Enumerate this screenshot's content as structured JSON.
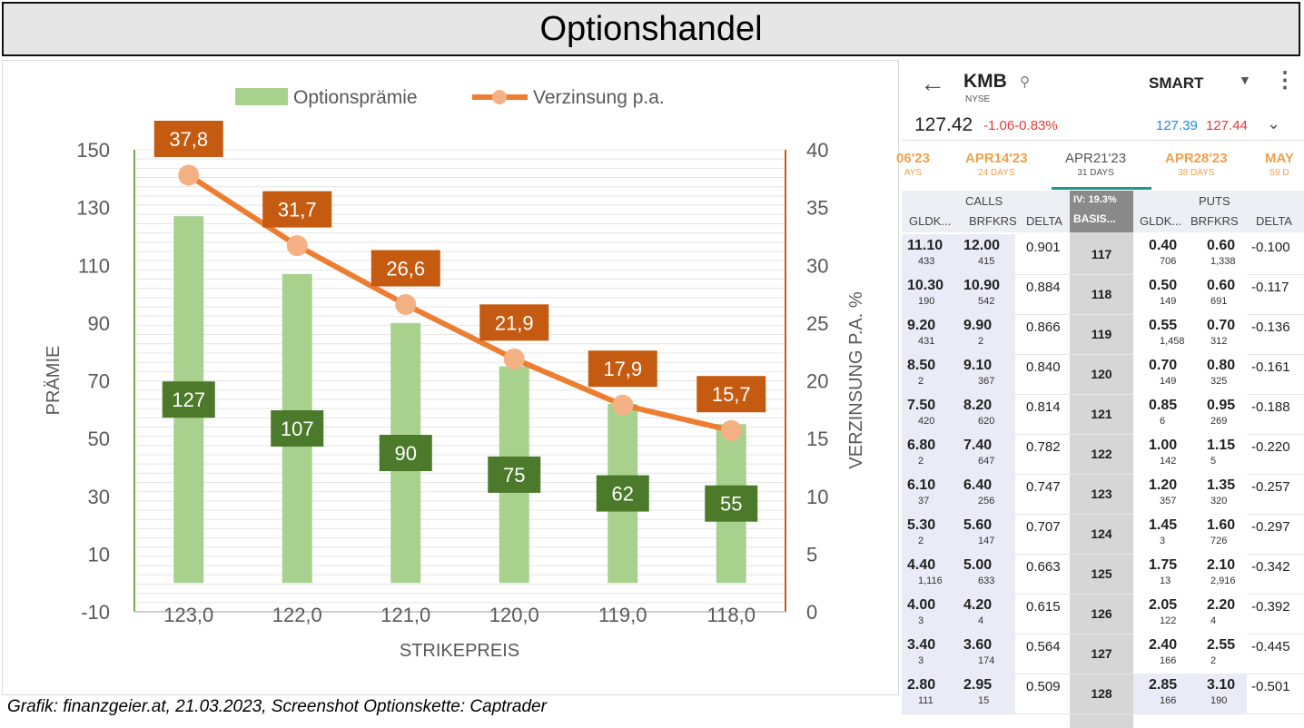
{
  "title": "Optionshandel",
  "caption": "Grafik: finanzgeier.at, 21.03.2023, Screenshot Optionskette: Captrader",
  "chart_data": {
    "type": "bar+line",
    "categories": [
      "123,0",
      "122,0",
      "121,0",
      "120,0",
      "119,0",
      "118,0"
    ],
    "series": [
      {
        "name": "Optionsprämie",
        "type": "bar",
        "axis": "left",
        "values": [
          127,
          107,
          90,
          75,
          62,
          55
        ],
        "labels": [
          "127",
          "107",
          "90",
          "75",
          "62",
          "55"
        ],
        "color": "#a9d18e",
        "label_color": "#4a7a2a"
      },
      {
        "name": "Verzinsung p.a.",
        "type": "line",
        "axis": "right",
        "values": [
          37.8,
          31.7,
          26.6,
          21.9,
          17.9,
          15.7
        ],
        "labels": [
          "37,8",
          "31,7",
          "26,6",
          "21,9",
          "17,9",
          "15,7"
        ],
        "color": "#ed7d31",
        "marker_color": "#f4b183",
        "label_color": "#c55a11"
      }
    ],
    "xlabel": "STRIKEPREIS",
    "ylabel": "PRÄMIE",
    "y2label": "VERZINSUNG P.A. %",
    "ylim": [
      -10,
      150
    ],
    "yticks": [
      "150",
      "130",
      "110",
      "90",
      "70",
      "50",
      "30",
      "10",
      "-10"
    ],
    "y2lim": [
      0,
      40
    ],
    "y2ticks": [
      "40",
      "35",
      "30",
      "25",
      "20",
      "15",
      "10",
      "5",
      "0"
    ],
    "grid": true,
    "legend": "top-center",
    "axis_left_color": "#70ad47",
    "axis_right_color": "#c55a11"
  },
  "chain": {
    "symbol": "KMB",
    "exchange": "NYSE",
    "routing": "SMART",
    "last": "127.42",
    "change": "-1.06-0.83%",
    "bid": "127.39",
    "ask": "127.44",
    "expiries": [
      {
        "date": "06'23",
        "days": "AYS"
      },
      {
        "date": "APR14'23",
        "days": "24 DAYS"
      },
      {
        "date": "APR21'23",
        "days": "31 DAYS"
      },
      {
        "date": "APR28'23",
        "days": "38 DAYS"
      },
      {
        "date": "MAY",
        "days": "59 D"
      }
    ],
    "calls_label": "CALLS",
    "puts_label": "PUTS",
    "iv_label": "IV: 19.3%",
    "basis_label": "BASIS...",
    "col_bid": "GLDK...",
    "col_ask": "BRFKRS",
    "col_delta": "DELTA",
    "rows": [
      {
        "strike": "117",
        "cb": "11.10",
        "cbs": "433",
        "ca": "12.00",
        "cas": "415",
        "cd": "0.901",
        "pb": "0.40",
        "pbs": "706",
        "pa": "0.60",
        "pas": "1,338",
        "pd": "-0.100"
      },
      {
        "strike": "118",
        "cb": "10.30",
        "cbs": "190",
        "ca": "10.90",
        "cas": "542",
        "cd": "0.884",
        "pb": "0.50",
        "pbs": "149",
        "pa": "0.60",
        "pas": "691",
        "pd": "-0.117"
      },
      {
        "strike": "119",
        "cb": "9.20",
        "cbs": "431",
        "ca": "9.90",
        "cas": "2",
        "cd": "0.866",
        "pb": "0.55",
        "pbs": "1,458",
        "pa": "0.70",
        "pas": "312",
        "pd": "-0.136"
      },
      {
        "strike": "120",
        "cb": "8.50",
        "cbs": "2",
        "ca": "9.10",
        "cas": "367",
        "cd": "0.840",
        "pb": "0.70",
        "pbs": "149",
        "pa": "0.80",
        "pas": "325",
        "pd": "-0.161"
      },
      {
        "strike": "121",
        "cb": "7.50",
        "cbs": "420",
        "ca": "8.20",
        "cas": "620",
        "cd": "0.814",
        "pb": "0.85",
        "pbs": "6",
        "pa": "0.95",
        "pas": "269",
        "pd": "-0.188"
      },
      {
        "strike": "122",
        "cb": "6.80",
        "cbs": "2",
        "ca": "7.40",
        "cas": "647",
        "cd": "0.782",
        "pb": "1.00",
        "pbs": "142",
        "pa": "1.15",
        "pas": "5",
        "pd": "-0.220"
      },
      {
        "strike": "123",
        "cb": "6.10",
        "cbs": "37",
        "ca": "6.40",
        "cas": "256",
        "cd": "0.747",
        "pb": "1.20",
        "pbs": "357",
        "pa": "1.35",
        "pas": "320",
        "pd": "-0.257"
      },
      {
        "strike": "124",
        "cb": "5.30",
        "cbs": "2",
        "ca": "5.60",
        "cas": "147",
        "cd": "0.707",
        "pb": "1.45",
        "pbs": "3",
        "pa": "1.60",
        "pas": "726",
        "pd": "-0.297"
      },
      {
        "strike": "125",
        "cb": "4.40",
        "cbs": "1,116",
        "ca": "5.00",
        "cas": "633",
        "cd": "0.663",
        "pb": "1.75",
        "pbs": "13",
        "pa": "2.10",
        "pas": "2,916",
        "pd": "-0.342"
      },
      {
        "strike": "126",
        "cb": "4.00",
        "cbs": "3",
        "ca": "4.20",
        "cas": "4",
        "cd": "0.615",
        "pb": "2.05",
        "pbs": "122",
        "pa": "2.20",
        "pas": "4",
        "pd": "-0.392"
      },
      {
        "strike": "127",
        "cb": "3.40",
        "cbs": "3",
        "ca": "3.60",
        "cas": "174",
        "cd": "0.564",
        "pb": "2.40",
        "pbs": "166",
        "pa": "2.55",
        "pas": "2",
        "pd": "-0.445"
      },
      {
        "strike": "128",
        "cb": "2.80",
        "cbs": "111",
        "ca": "2.95",
        "cas": "15",
        "cd": "0.509",
        "pb": "2.85",
        "pbs": "166",
        "pa": "3.10",
        "pas": "190",
        "pd": "-0.501"
      }
    ]
  }
}
